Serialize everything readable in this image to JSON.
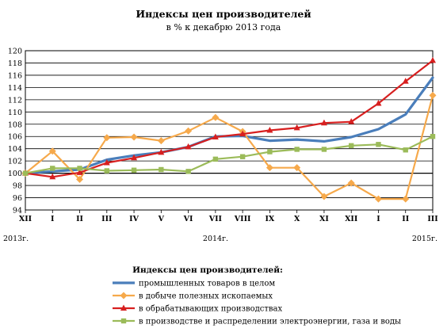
{
  "chart_data": {
    "type": "line",
    "title": "Индексы цен производителей",
    "subtitle": "в % к декабрю 2013 года",
    "y_ticks": [
      "94",
      "96",
      "98",
      "100",
      "102",
      "104",
      "106",
      "108",
      "110",
      "112",
      "114",
      "116",
      "118",
      "120"
    ],
    "ylim": [
      94,
      120
    ],
    "categories": [
      "XII",
      "I",
      "II",
      "III",
      "IV",
      "V",
      "VI",
      "VII",
      "VIII",
      "IX",
      "X",
      "XI",
      "XII",
      "I",
      "II",
      "III"
    ],
    "year_labels": [
      "2013г.",
      "2014г.",
      "2015г."
    ],
    "grid": "horizontal",
    "legend": {
      "title": "Индексы цен производителей:",
      "position": "bottom"
    },
    "series": [
      {
        "name": "промышленных  товаров в целом",
        "color": "#4a7ebb",
        "marker": "none",
        "values": [
          100.0,
          100.3,
          100.6,
          102.2,
          102.9,
          103.4,
          104.3,
          106.0,
          106.1,
          105.3,
          105.5,
          105.2,
          105.9,
          107.2,
          109.6,
          115.6
        ]
      },
      {
        "name": "в добыче полезных ископаемых",
        "color": "#f6a94b",
        "marker": "diamond",
        "values": [
          100.0,
          103.6,
          99.0,
          105.8,
          105.9,
          105.3,
          106.9,
          109.1,
          106.8,
          100.9,
          100.9,
          96.2,
          98.4,
          95.8,
          95.8,
          112.7
        ]
      },
      {
        "name": "в обрабатывающих производствах",
        "color": "#d71f1f",
        "marker": "triangle",
        "values": [
          100.0,
          99.4,
          100.1,
          101.7,
          102.5,
          103.4,
          104.3,
          105.9,
          106.4,
          107.0,
          107.4,
          108.2,
          108.4,
          111.4,
          115.0,
          118.4
        ]
      },
      {
        "name": "в производстве и распределении  электроэнергии,  газа и воды",
        "color": "#9bbb59",
        "marker": "square",
        "values": [
          100.0,
          100.8,
          100.8,
          100.4,
          100.5,
          100.6,
          100.3,
          102.3,
          102.7,
          103.5,
          103.9,
          103.9,
          104.5,
          104.7,
          103.8,
          106.0
        ]
      }
    ]
  }
}
